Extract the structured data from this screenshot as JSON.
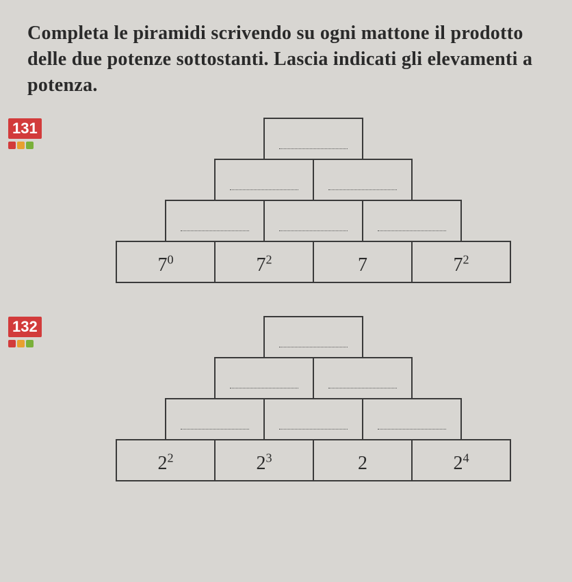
{
  "instruction": "Completa le piramidi scrivendo su ogni mattone il prodotto delle due potenze sottostanti. Lascia indicati gli elevamenti a potenza.",
  "exercises": [
    {
      "number": "131",
      "dots": [
        "red",
        "orange",
        "green"
      ],
      "has_dash": true,
      "pyramid": {
        "rows": [
          {
            "cells": [
              {
                "type": "empty"
              }
            ]
          },
          {
            "cells": [
              {
                "type": "empty"
              },
              {
                "type": "empty"
              }
            ]
          },
          {
            "cells": [
              {
                "type": "empty"
              },
              {
                "type": "empty"
              },
              {
                "type": "empty"
              }
            ]
          },
          {
            "cells": [
              {
                "type": "power",
                "base": "7",
                "exp": "0"
              },
              {
                "type": "power",
                "base": "7",
                "exp": "2"
              },
              {
                "type": "plain",
                "text": "7"
              },
              {
                "type": "power",
                "base": "7",
                "exp": "2"
              }
            ]
          }
        ]
      }
    },
    {
      "number": "132",
      "dots": [
        "red",
        "orange",
        "green"
      ],
      "has_dash": false,
      "pyramid": {
        "rows": [
          {
            "cells": [
              {
                "type": "empty"
              }
            ]
          },
          {
            "cells": [
              {
                "type": "empty"
              },
              {
                "type": "empty"
              }
            ]
          },
          {
            "cells": [
              {
                "type": "empty"
              },
              {
                "type": "empty"
              },
              {
                "type": "empty"
              }
            ]
          },
          {
            "cells": [
              {
                "type": "power",
                "base": "2",
                "exp": "2"
              },
              {
                "type": "power",
                "base": "2",
                "exp": "3"
              },
              {
                "type": "plain",
                "text": "2"
              },
              {
                "type": "power",
                "base": "2",
                "exp": "4"
              }
            ]
          }
        ]
      }
    }
  ]
}
